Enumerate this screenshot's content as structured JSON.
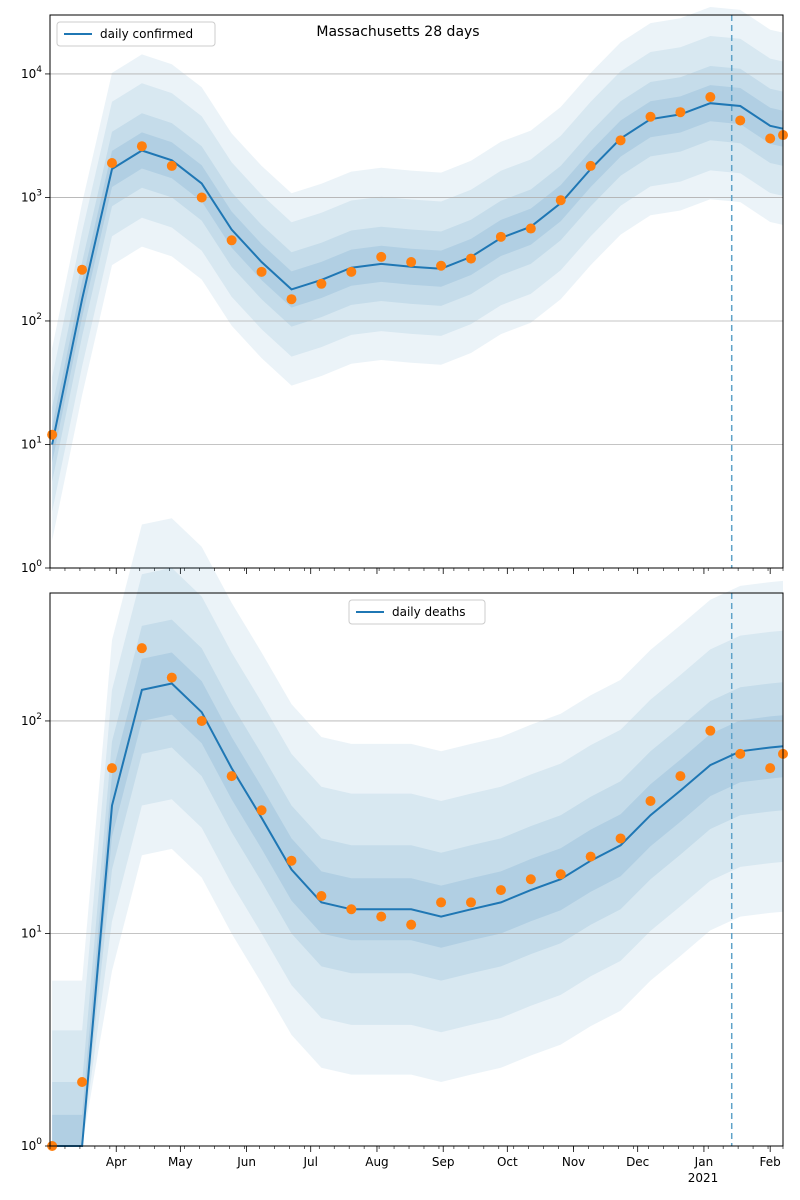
{
  "chart_data": [
    {
      "type": "line",
      "title": "Massachusetts 28 days",
      "yscale": "log",
      "ylim": [
        1,
        30000
      ],
      "ytick_labels": [
        "10^0",
        "10^1",
        "10^2",
        "10^3",
        "10^4"
      ],
      "grid": "horizontal",
      "legend_position": "top-left",
      "forecast_start_marker": "2021-01-14",
      "colors": {
        "line": "#1f77b4",
        "points": "#ff7f0e",
        "band": "#1f77b4",
        "marker_line": "#5fa2c8"
      },
      "x": [
        "2020-03-02",
        "2020-03-16",
        "2020-03-30",
        "2020-04-13",
        "2020-04-27",
        "2020-05-11",
        "2020-05-25",
        "2020-06-08",
        "2020-06-22",
        "2020-07-06",
        "2020-07-20",
        "2020-08-03",
        "2020-08-17",
        "2020-08-31",
        "2020-09-14",
        "2020-09-28",
        "2020-10-12",
        "2020-10-26",
        "2020-11-09",
        "2020-11-23",
        "2020-12-07",
        "2020-12-21",
        "2021-01-04",
        "2021-01-18",
        "2021-02-01",
        "2021-02-07"
      ],
      "series": [
        {
          "name": "daily confirmed",
          "kind": "line",
          "values": [
            10,
            150,
            1700,
            2400,
            2000,
            1300,
            550,
            300,
            180,
            215,
            270,
            290,
            275,
            265,
            330,
            470,
            580,
            900,
            1700,
            3000,
            4300,
            4700,
            5800,
            5500,
            3800,
            3600
          ]
        },
        {
          "name": "",
          "kind": "points",
          "values": [
            12,
            260,
            1900,
            2600,
            1800,
            1000,
            450,
            250,
            150,
            200,
            250,
            330,
            300,
            280,
            320,
            480,
            560,
            950,
            1800,
            2900,
            4500,
            4900,
            6500,
            4200,
            3000,
            3200
          ]
        }
      ]
    },
    {
      "type": "line",
      "title": "",
      "yscale": "log",
      "ylim": [
        1,
        400
      ],
      "ytick_labels": [
        "10^0",
        "10^1",
        "10^2"
      ],
      "grid": "horizontal",
      "legend_position": "top-center",
      "forecast_start_marker": "2021-01-14",
      "colors": {
        "line": "#1f77b4",
        "points": "#ff7f0e",
        "band": "#1f77b4",
        "marker_line": "#5fa2c8"
      },
      "x_tick_labels": [
        "Apr",
        "May",
        "Jun",
        "Jul",
        "Aug",
        "Sep",
        "Oct",
        "Nov",
        "Dec",
        "Jan",
        "Feb"
      ],
      "x_tick_sublabel": "2021",
      "x": [
        "2020-03-02",
        "2020-03-16",
        "2020-03-30",
        "2020-04-13",
        "2020-04-27",
        "2020-05-11",
        "2020-05-25",
        "2020-06-08",
        "2020-06-22",
        "2020-07-06",
        "2020-07-20",
        "2020-08-03",
        "2020-08-17",
        "2020-08-31",
        "2020-09-14",
        "2020-09-28",
        "2020-10-12",
        "2020-10-26",
        "2020-11-09",
        "2020-11-23",
        "2020-12-07",
        "2020-12-21",
        "2021-01-04",
        "2021-01-18",
        "2021-02-01",
        "2021-02-07"
      ],
      "series": [
        {
          "name": "daily deaths",
          "kind": "line",
          "values": [
            1,
            1,
            40,
            140,
            150,
            110,
            60,
            35,
            20,
            14,
            13,
            13,
            13,
            12,
            13,
            14,
            16,
            18,
            22,
            26,
            36,
            47,
            62,
            72,
            75,
            76
          ]
        },
        {
          "name": "",
          "kind": "points",
          "values": [
            1,
            2,
            60,
            220,
            160,
            100,
            55,
            38,
            22,
            15,
            13,
            12,
            11,
            14,
            14,
            16,
            18,
            19,
            23,
            28,
            42,
            55,
            90,
            70,
            60,
            70
          ]
        }
      ]
    }
  ]
}
